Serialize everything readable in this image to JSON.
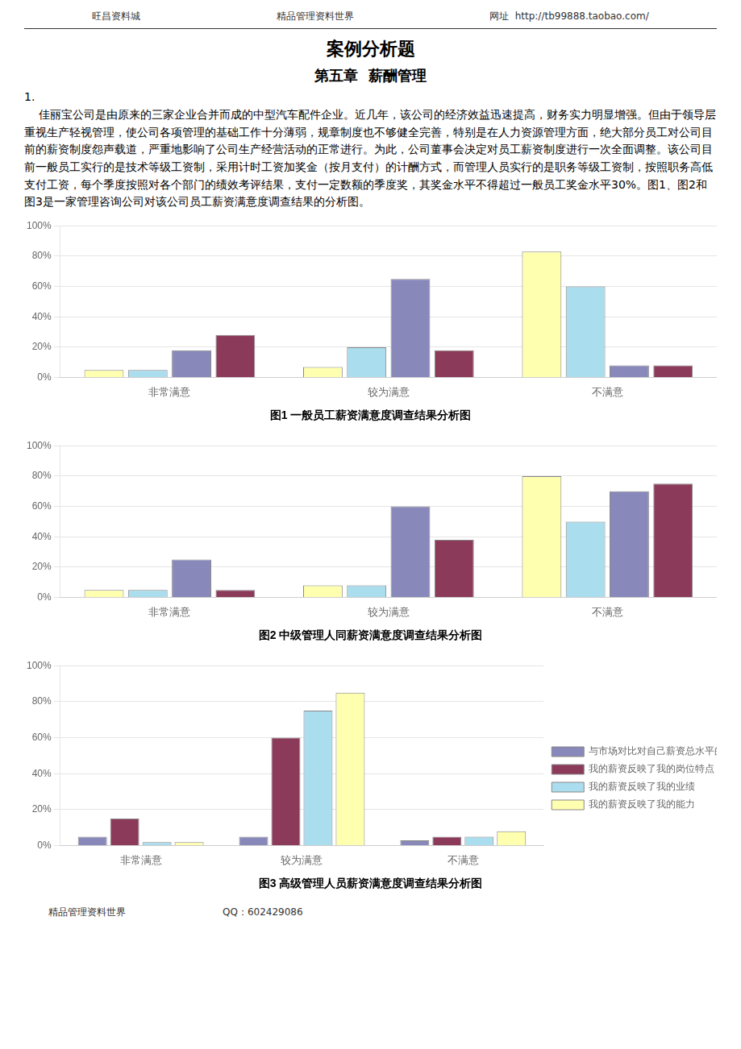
{
  "header": [
    "旺昌资料城",
    "精品管理资料世界",
    "网址  http://tb99888.taobao.com/"
  ],
  "title": "案例分析题",
  "subtitle": "第五章  薪酬管理",
  "section": "1.",
  "paragraph": "    佳丽宝公司是由原来的三家企业合并而成的中型汽车配件企业。近几年，该公司的经济效益迅速提高，财务实力明显增强。但由于领导层重视生产轻视管理，使公司各项管理的基础工作十分薄弱，规章制度也不够健全完善，特别是在人力资源管理方面，绝大部分员工对公司目前的薪资制度怨声载道，严重地影响了公司生产经营活动的正常进行。为此，公司董事会决定对员工薪资制度进行一次全面调整。该公司目前一般员工实行的是技术等级工资制，采用计时工资加奖金（按月支付）的计酬方式，而管理人员实行的是职务等级工资制，按照职务高低支付工资，每个季度按照对各个部门的绩效考评结果，支付一定数额的季度奖，其奖金水平不得超过一般员工奖金水平30%。图1、图2和图3是一家管理咨询公司对该公司员工薪资满意度调查结果的分析图。",
  "footer": [
    "精品管理资料世界",
    "QQ：602429086"
  ],
  "chart_data": [
    {
      "type": "bar",
      "title": "图1 一般员工薪资满意度调查结果分析图",
      "categories": [
        "非常满意",
        "较为满意",
        "不满意"
      ],
      "series": [
        {
          "color": "#FFFFB0",
          "values": [
            5,
            7,
            83
          ]
        },
        {
          "color": "#AADDEE",
          "values": [
            5,
            20,
            60
          ]
        },
        {
          "color": "#8888BB",
          "values": [
            18,
            65,
            8
          ]
        },
        {
          "color": "#8B3A5A",
          "values": [
            28,
            18,
            8
          ]
        }
      ],
      "ylim": [
        0,
        100
      ],
      "yticks": [
        {
          "value": 0,
          "label": "0%"
        },
        {
          "value": 20,
          "label": "20%"
        },
        {
          "value": 40,
          "label": "40%"
        },
        {
          "value": 60,
          "label": "60%"
        },
        {
          "value": 80,
          "label": "80%"
        },
        {
          "value": 100,
          "label": "100%"
        }
      ],
      "grid": true
    },
    {
      "type": "bar",
      "title": "图2 中级管理人同薪资满意度调查结果分析图",
      "categories": [
        "非常满意",
        "较为满意",
        "不满意"
      ],
      "series": [
        {
          "color": "#FFFFB0",
          "values": [
            5,
            8,
            80
          ]
        },
        {
          "color": "#AADDEE",
          "values": [
            5,
            8,
            50
          ]
        },
        {
          "color": "#8888BB",
          "values": [
            25,
            60,
            70
          ]
        },
        {
          "color": "#8B3A5A",
          "values": [
            5,
            38,
            75
          ]
        }
      ],
      "ylim": [
        0,
        100
      ],
      "yticks": [
        {
          "value": 0,
          "label": "0%"
        },
        {
          "value": 20,
          "label": "20%"
        },
        {
          "value": 40,
          "label": "40%"
        },
        {
          "value": 60,
          "label": "60%"
        },
        {
          "value": 80,
          "label": "80%"
        },
        {
          "value": 100,
          "label": "100%"
        }
      ],
      "grid": true
    },
    {
      "type": "bar",
      "title": "图3 高级管理人员薪资满意度调查结果分析图",
      "categories": [
        "非常满意",
        "较为满意",
        "不满意"
      ],
      "series": [
        {
          "name": "与市场对比对自己薪资总水平的满意度",
          "color": "#8888BB",
          "values": [
            5,
            5,
            3
          ]
        },
        {
          "name": "我的薪资反映了我的岗位特点",
          "color": "#8B3A5A",
          "values": [
            15,
            60,
            5
          ]
        },
        {
          "name": "我的薪资反映了我的业绩",
          "color": "#AADDEE",
          "values": [
            2,
            75,
            5
          ]
        },
        {
          "name": "我的薪资反映了我的能力",
          "color": "#FFFFB0",
          "values": [
            2,
            85,
            8
          ]
        }
      ],
      "ylim": [
        0,
        100
      ],
      "yticks": [
        {
          "value": 0,
          "label": "0%"
        },
        {
          "value": 20,
          "label": "20%"
        },
        {
          "value": 40,
          "label": "40%"
        },
        {
          "value": 60,
          "label": "60%"
        },
        {
          "value": 80,
          "label": "80%"
        },
        {
          "value": 100,
          "label": "100%"
        }
      ],
      "grid": true,
      "legend": "right"
    }
  ]
}
